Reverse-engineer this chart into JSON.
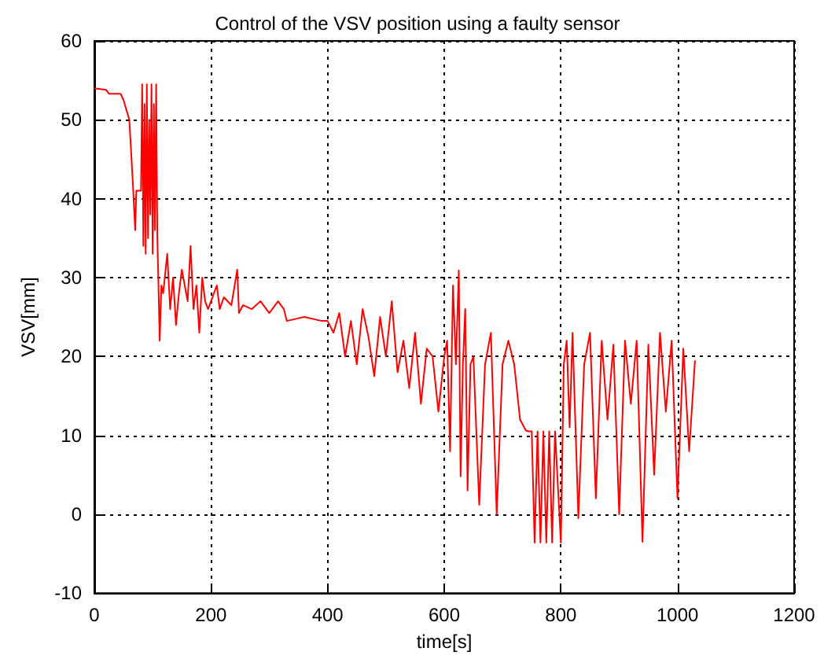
{
  "chart_data": {
    "type": "line",
    "title": "Control of the VSV position using a faulty sensor",
    "xlabel": "time[s]",
    "ylabel": "VSV[mm]",
    "xlim": [
      0,
      1200
    ],
    "xticks": [
      0,
      200,
      400,
      600,
      800,
      1000,
      1200
    ],
    "ylim": [
      -10,
      60
    ],
    "yticks": [
      -10,
      0,
      10,
      20,
      30,
      40,
      50,
      60
    ],
    "grid": true,
    "marker": "none",
    "line_style": "solid",
    "series": [
      {
        "color": "#ff0000",
        "x": [
          0,
          20,
          25,
          45,
          50,
          60,
          63,
          66,
          70,
          72,
          76,
          80,
          82,
          84,
          86,
          88,
          90,
          92,
          94,
          96,
          98,
          100,
          102,
          104,
          106,
          108,
          110,
          112,
          115,
          118,
          125,
          130,
          135,
          140,
          145,
          150,
          160,
          165,
          170,
          175,
          180,
          185,
          190,
          195,
          200,
          210,
          215,
          222,
          235,
          245,
          248,
          255,
          270,
          285,
          300,
          315,
          325,
          330,
          360,
          390,
          400,
          410,
          420,
          430,
          440,
          450,
          460,
          470,
          480,
          490,
          500,
          510,
          520,
          530,
          540,
          550,
          560,
          570,
          580,
          590,
          600,
          605,
          610,
          615,
          620,
          625,
          628,
          632,
          636,
          640,
          645,
          650,
          660,
          670,
          680,
          690,
          700,
          710,
          720,
          730,
          740,
          745,
          750,
          755,
          760,
          765,
          770,
          775,
          780,
          785,
          790,
          800,
          805,
          810,
          815,
          820,
          830,
          840,
          850,
          860,
          870,
          880,
          890,
          900,
          910,
          920,
          930,
          940,
          950,
          960,
          970,
          980,
          990,
          1000,
          1010,
          1020,
          1030
        ],
        "values": [
          54,
          53.8,
          53.3,
          53.3,
          52.5,
          50,
          46,
          42,
          36,
          41,
          41,
          41,
          54.5,
          34,
          52,
          33,
          54.5,
          35,
          50,
          38,
          54.5,
          33,
          52,
          36,
          54.5,
          35,
          29,
          22,
          29,
          28,
          33,
          26,
          30,
          24,
          28,
          31,
          27,
          34,
          26,
          29,
          23,
          30,
          27,
          26,
          27,
          29,
          26,
          27.5,
          26.5,
          31,
          25.5,
          26.5,
          26,
          27,
          25.5,
          27,
          26,
          24.5,
          25,
          24.5,
          24.5,
          23,
          25.5,
          20,
          24.5,
          19,
          26,
          22.5,
          17.5,
          25,
          20,
          27,
          18,
          22,
          16,
          23,
          14,
          21,
          20,
          13,
          20,
          22,
          8,
          29,
          19,
          30.9,
          4.8,
          19,
          26,
          3,
          19,
          20,
          1.2,
          19,
          23,
          0,
          19,
          22,
          19,
          12,
          10.6,
          10.5,
          10.5,
          -3.6,
          10.5,
          -3.6,
          10.5,
          -3.6,
          10.5,
          -3.6,
          10.5,
          -3.6,
          19,
          22,
          11,
          23,
          -0.5,
          19,
          23,
          2,
          22,
          12,
          21.5,
          0,
          22,
          14,
          22,
          -3.5,
          21.5,
          5,
          23,
          13,
          22,
          2,
          21,
          8,
          19.5
        ]
      }
    ]
  }
}
